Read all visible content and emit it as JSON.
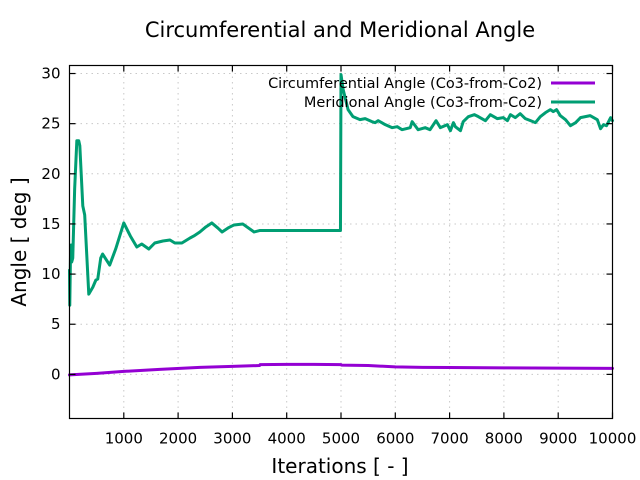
{
  "chart_data": {
    "type": "line",
    "title": "Circumferential and Meridional Angle",
    "xlabel": "Iterations [ - ]",
    "ylabel": "Angle [ deg ]",
    "xlim": [
      0,
      10000
    ],
    "ylim": [
      -4.4,
      30.8
    ],
    "xticks": [
      1000,
      2000,
      3000,
      4000,
      5000,
      6000,
      7000,
      8000,
      9000,
      10000
    ],
    "xtick_labels": [
      "1000",
      "2000",
      "3000",
      "4000",
      "5000",
      "6000",
      "7000",
      "8000",
      "9000",
      "10000"
    ],
    "yticks": [
      0,
      5,
      10,
      15,
      20,
      25,
      30
    ],
    "ytick_labels": [
      "0",
      "5",
      "10",
      "15",
      "20",
      "25",
      "30"
    ],
    "grid": true,
    "legend_position": "top-right",
    "series": [
      {
        "name": "Circumferential Angle (Co3-from-Co2)",
        "color": "#9400d3",
        "x": [
          0,
          500,
          1000,
          1660,
          2400,
          3000,
          3500,
          3510,
          4000,
          4500,
          5000,
          5010,
          5500,
          6000,
          6500,
          7000,
          8000,
          9000,
          10000
        ],
        "y": [
          -0.05,
          0.1,
          0.3,
          0.5,
          0.7,
          0.8,
          0.88,
          0.97,
          1.0,
          1.0,
          0.97,
          0.92,
          0.88,
          0.75,
          0.7,
          0.68,
          0.65,
          0.62,
          0.6
        ]
      },
      {
        "name": "Meridional Angle (Co3-from-Co2)",
        "color": "#009e73",
        "x": [
          0,
          5,
          20,
          30,
          40,
          60,
          95,
          135,
          170,
          190,
          245,
          280,
          355,
          430,
          485,
          520,
          575,
          610,
          740,
          850,
          1000,
          1120,
          1240,
          1330,
          1460,
          1570,
          1720,
          1850,
          1940,
          2070,
          2220,
          2290,
          2400,
          2510,
          2620,
          2730,
          2810,
          2920,
          3030,
          3190,
          3400,
          3510,
          4990,
          5000,
          5040,
          5130,
          5220,
          5350,
          5445,
          5570,
          5630,
          5685,
          5815,
          5940,
          6035,
          6125,
          6275,
          6310,
          6420,
          6550,
          6640,
          6750,
          6830,
          6960,
          7015,
          7070,
          7105,
          7200,
          7250,
          7345,
          7455,
          7530,
          7660,
          7750,
          7880,
          7990,
          8065,
          8120,
          8210,
          8300,
          8395,
          8490,
          8580,
          8670,
          8765,
          8855,
          8910,
          8970,
          9040,
          9135,
          9225,
          9320,
          9410,
          9590,
          9720,
          9780,
          9835,
          9890,
          9965,
          10000
        ],
        "y": [
          10.4,
          6.9,
          12.4,
          12.9,
          11.2,
          11.6,
          18.5,
          23.3,
          23.3,
          22.8,
          16.8,
          15.9,
          8.0,
          8.7,
          9.4,
          9.5,
          11.6,
          12.0,
          10.9,
          12.5,
          15.1,
          13.8,
          12.7,
          13.0,
          12.5,
          13.1,
          13.3,
          13.4,
          13.1,
          13.1,
          13.6,
          13.8,
          14.2,
          14.7,
          15.1,
          14.6,
          14.2,
          14.6,
          14.9,
          15.0,
          14.2,
          14.35,
          14.35,
          29.9,
          28.4,
          26.4,
          25.7,
          25.4,
          25.5,
          25.2,
          25.1,
          25.3,
          24.9,
          24.6,
          24.7,
          24.4,
          24.6,
          25.2,
          24.4,
          24.6,
          24.4,
          25.3,
          24.6,
          24.9,
          24.3,
          25.1,
          24.7,
          24.3,
          25.2,
          25.7,
          25.9,
          25.7,
          25.3,
          25.9,
          25.5,
          25.6,
          25.3,
          25.9,
          25.6,
          26.0,
          25.5,
          25.3,
          25.1,
          25.7,
          26.1,
          26.4,
          26.2,
          26.4,
          25.8,
          25.4,
          24.8,
          25.1,
          25.6,
          25.8,
          25.4,
          24.5,
          24.9,
          24.8,
          25.6,
          25.3
        ]
      }
    ]
  }
}
